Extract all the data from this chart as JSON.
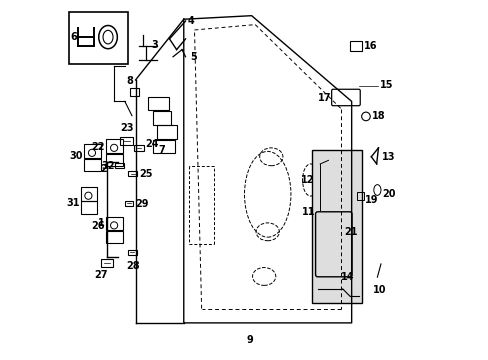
{
  "background_color": "#ffffff",
  "fig_width": 4.89,
  "fig_height": 3.6,
  "dpi": 100,
  "line_color": "#000000",
  "label_fontsize": 7.0,
  "label_color": "#000000"
}
